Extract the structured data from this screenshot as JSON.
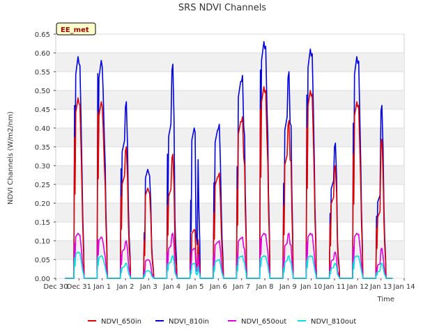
{
  "chart_data": {
    "type": "line",
    "title": "SRS NDVI Channels",
    "xlabel": "Time",
    "ylabel": "NDVI Channels (W/m2/nm)",
    "site_label": "EE_met",
    "ylim": [
      0.0,
      0.65
    ],
    "yticks": [
      "0.00",
      "0.05",
      "0.10",
      "0.15",
      "0.20",
      "0.25",
      "0.30",
      "0.35",
      "0.40",
      "0.45",
      "0.50",
      "0.55",
      "0.60",
      "0.65"
    ],
    "xlim_days": [
      0,
      15
    ],
    "xticks": [
      "Dec 30",
      "Dec 31",
      "Jan 1",
      "Jan 2",
      "Jan 3",
      "Jan 4",
      "Jan 5",
      "Jan 6",
      "Jan 7",
      "Jan 8",
      "Jan 9",
      "Jan 10",
      "Jan 11",
      "Jan 12",
      "Jan 13",
      "Jan 14"
    ],
    "grid": "horizontal bands",
    "legend_position": "bottom",
    "days": [
      "Dec 31",
      "Jan 1",
      "Jan 2",
      "Jan 3",
      "Jan 4",
      "Jan 5",
      "Jan 6",
      "Jan 7",
      "Jan 8",
      "Jan 9",
      "Jan 10",
      "Jan 11",
      "Jan 12",
      "Jan 13"
    ],
    "series": [
      {
        "name": "NDVI_650in",
        "color": "#dd0000",
        "daily_peak": [
          0.48,
          0.47,
          0.35,
          0.24,
          0.33,
          0.13,
          0.28,
          0.43,
          0.51,
          0.42,
          0.5,
          0.3,
          0.47,
          0.37
        ]
      },
      {
        "name": "NDVI_810in",
        "color": "#0000dd",
        "daily_peak": [
          0.59,
          0.58,
          0.47,
          0.29,
          0.57,
          0.4,
          0.41,
          0.54,
          0.63,
          0.55,
          0.61,
          0.36,
          0.59,
          0.46
        ]
      },
      {
        "name": "NDVI_650out",
        "color": "#dd00dd",
        "daily_peak": [
          0.12,
          0.11,
          0.1,
          0.05,
          0.12,
          0.08,
          0.1,
          0.11,
          0.12,
          0.12,
          0.12,
          0.07,
          0.12,
          0.08
        ]
      },
      {
        "name": "NDVI_810out",
        "color": "#00dddd",
        "daily_peak": [
          0.07,
          0.06,
          0.04,
          0.02,
          0.06,
          0.04,
          0.05,
          0.06,
          0.06,
          0.06,
          0.06,
          0.04,
          0.06,
          0.04
        ]
      }
    ]
  }
}
